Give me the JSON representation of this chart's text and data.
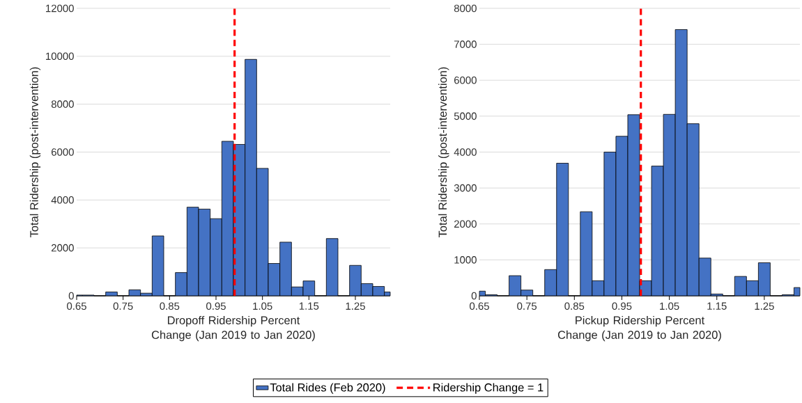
{
  "chart_data": [
    {
      "type": "histogram",
      "xlabel": "Dropoff Ridership Percent Change (Jan 2019 to Jan 2020)",
      "ylabel": "Total Ridership (post-intervention)",
      "bins": [
        0.65,
        0.6625,
        0.6875,
        0.7125,
        0.7375,
        0.7625,
        0.7875,
        0.8125,
        0.8375,
        0.8625,
        0.8875,
        0.9125,
        0.9375,
        0.9625,
        0.9875,
        1.0125,
        1.0375,
        1.0625,
        1.0875,
        1.1125,
        1.1375,
        1.1625,
        1.1875,
        1.2125,
        1.2375,
        1.2625,
        1.2875,
        1.3125,
        1.325
      ],
      "series": [
        {
          "name": "Total Rides (Feb 2020)",
          "color": "#4472c4",
          "values": [
            30,
            30,
            0,
            160,
            0,
            250,
            110,
            2500,
            0,
            970,
            3700,
            3620,
            3220,
            6450,
            6320,
            9870,
            5320,
            1350,
            2240,
            370,
            620,
            0,
            2390,
            0,
            1270,
            510,
            390,
            160
          ]
        }
      ],
      "xlim": [
        0.65,
        1.325
      ],
      "xticks": [
        0.65,
        0.75,
        0.85,
        0.95,
        1.05,
        1.15,
        1.25
      ],
      "ylim": [
        0,
        12000
      ],
      "yticks": [
        0,
        2000,
        4000,
        6000,
        8000,
        10000,
        12000
      ],
      "grid": "y",
      "ref_lines": [
        {
          "axis": "x",
          "value": 0.99,
          "label": "Ridership Change = 1",
          "color": "#ff0000",
          "line_style": "dashed"
        }
      ],
      "legend": "bottom"
    },
    {
      "type": "histogram",
      "xlabel": "Pickup Ridership Percent Change (Jan 2019 to Jan 2020)",
      "ylabel": "Total Ridership (post-intervention)",
      "bins": [
        0.65,
        0.6625,
        0.6875,
        0.7125,
        0.7375,
        0.7625,
        0.7875,
        0.8125,
        0.8375,
        0.8625,
        0.8875,
        0.9125,
        0.9375,
        0.9625,
        0.9875,
        1.0125,
        1.0375,
        1.0625,
        1.0875,
        1.1125,
        1.1375,
        1.1625,
        1.1875,
        1.2125,
        1.2375,
        1.2625,
        1.2875,
        1.3125,
        1.325
      ],
      "series": [
        {
          "color": "#4472c4",
          "values": [
            130,
            30,
            0,
            560,
            160,
            0,
            730,
            3690,
            0,
            2340,
            420,
            4000,
            4440,
            5040,
            420,
            3610,
            5050,
            7410,
            4790,
            1050,
            50,
            0,
            540,
            420,
            920,
            0,
            30,
            230
          ]
        }
      ],
      "xlim": [
        0.65,
        1.325
      ],
      "xticks": [
        0.65,
        0.75,
        0.85,
        0.95,
        1.05,
        1.15,
        1.25
      ],
      "ylim": [
        0,
        8000
      ],
      "yticks": [
        0,
        1000,
        2000,
        3000,
        4000,
        5000,
        6000,
        7000,
        8000
      ],
      "grid": "y",
      "ref_lines": [
        {
          "axis": "x",
          "value": 0.99,
          "color": "#ff0000",
          "line_style": "dashed"
        }
      ]
    }
  ]
}
